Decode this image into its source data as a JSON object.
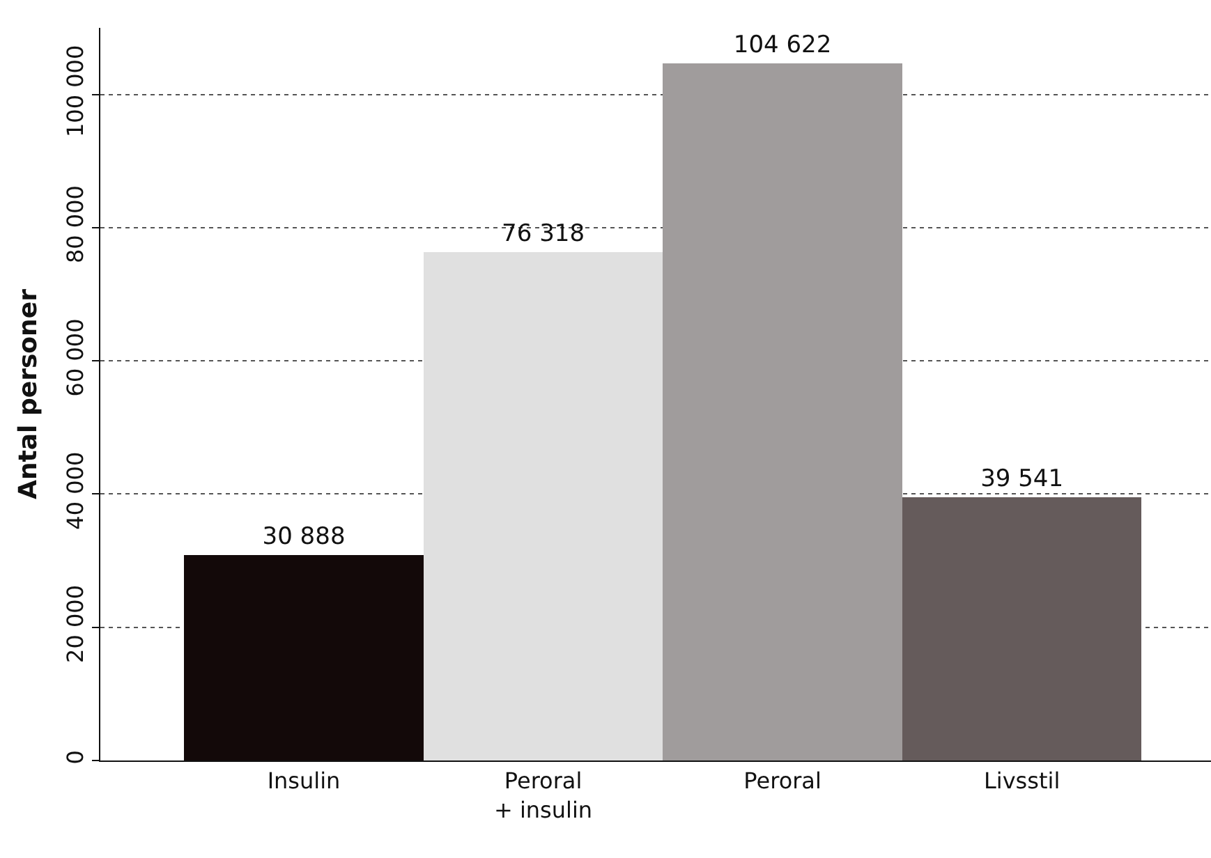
{
  "chart_data": {
    "type": "bar",
    "ylabel": "Antal personer",
    "categories": [
      "Insulin",
      "Peroral\n+ insulin",
      "Peroral",
      "Livsstil"
    ],
    "values": [
      30888,
      76318,
      104622,
      39541
    ],
    "colors": [
      "#130909",
      "#e0e0e0",
      "#a09c9c",
      "#655b5b"
    ],
    "value_labels": [
      "30 888",
      "76 318",
      "104 622",
      "39 541"
    ],
    "ylim": [
      0,
      110000
    ],
    "yticks": [
      0,
      {
        "value": 20000,
        "label": "20 000"
      },
      {
        "value": 40000,
        "label": "40 000"
      },
      {
        "value": 60000,
        "label": "60 000"
      },
      {
        "value": 80000,
        "label": "80 000"
      },
      {
        "value": 100000,
        "label": "100 000"
      }
    ],
    "grid": "y",
    "legend": false
  }
}
